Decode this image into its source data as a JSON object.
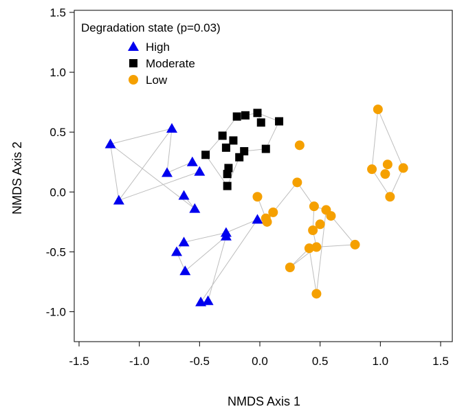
{
  "chart_data": {
    "type": "scatter",
    "xlabel": "NMDS Axis 1",
    "ylabel": "NMDS Axis 2",
    "xlim": [
      -1.5,
      1.5
    ],
    "ylim": [
      -1.25,
      1.5
    ],
    "xticks": [
      "-1.5",
      "-1.0",
      "-0.5",
      "0.0",
      "0.5",
      "1.0",
      "1.5"
    ],
    "yticks": [
      "-1.0",
      "-0.5",
      "0.0",
      "0.5",
      "1.0",
      "1.5"
    ],
    "legend": {
      "title": "Degradation state (p=0.03)",
      "position": "top-left"
    },
    "grid": false,
    "series": [
      {
        "name": "High",
        "marker": "triangle",
        "color": "#0000ee",
        "points": [
          [
            -1.24,
            0.4
          ],
          [
            -1.17,
            -0.07
          ],
          [
            -0.73,
            0.53
          ],
          [
            -0.77,
            0.16
          ],
          [
            -0.56,
            0.25
          ],
          [
            -0.5,
            0.17
          ],
          [
            -0.63,
            -0.03
          ],
          [
            -0.54,
            -0.14
          ],
          [
            -0.28,
            -0.34
          ],
          [
            -0.28,
            -0.37
          ],
          [
            -0.63,
            -0.42
          ],
          [
            -0.69,
            -0.5
          ],
          [
            -0.62,
            -0.66
          ],
          [
            -0.49,
            -0.92
          ],
          [
            -0.43,
            -0.91
          ],
          [
            -0.02,
            -0.23
          ]
        ],
        "edges": [
          [
            0,
            2
          ],
          [
            0,
            1
          ],
          [
            1,
            2
          ],
          [
            0,
            7
          ],
          [
            1,
            5
          ],
          [
            2,
            3
          ],
          [
            3,
            4
          ],
          [
            6,
            7
          ],
          [
            10,
            11
          ],
          [
            11,
            12
          ],
          [
            10,
            8
          ],
          [
            12,
            9
          ],
          [
            13,
            14
          ],
          [
            13,
            15
          ],
          [
            14,
            9
          ],
          [
            8,
            15
          ]
        ]
      },
      {
        "name": "Moderate",
        "marker": "square",
        "color": "#000000",
        "points": [
          [
            -0.45,
            0.31
          ],
          [
            -0.31,
            0.47
          ],
          [
            -0.28,
            0.37
          ],
          [
            -0.26,
            0.2
          ],
          [
            -0.27,
            0.15
          ],
          [
            -0.27,
            0.05
          ],
          [
            -0.22,
            0.43
          ],
          [
            -0.19,
            0.63
          ],
          [
            -0.17,
            0.29
          ],
          [
            -0.13,
            0.34
          ],
          [
            -0.12,
            0.64
          ],
          [
            -0.02,
            0.66
          ],
          [
            0.01,
            0.58
          ],
          [
            0.05,
            0.36
          ],
          [
            0.16,
            0.59
          ]
        ],
        "edges": [
          [
            0,
            1
          ],
          [
            1,
            7
          ],
          [
            7,
            10
          ],
          [
            10,
            11
          ],
          [
            11,
            14
          ],
          [
            14,
            13
          ],
          [
            13,
            9
          ],
          [
            9,
            8
          ],
          [
            8,
            5
          ],
          [
            5,
            0
          ],
          [
            12,
            11
          ],
          [
            6,
            2
          ],
          [
            3,
            4
          ]
        ]
      },
      {
        "name": "Low",
        "marker": "circle",
        "color": "#f5a000",
        "points": [
          [
            0.98,
            0.69
          ],
          [
            0.93,
            0.19
          ],
          [
            1.06,
            0.23
          ],
          [
            1.04,
            0.15
          ],
          [
            1.08,
            -0.04
          ],
          [
            1.19,
            0.2
          ],
          [
            0.33,
            0.39
          ],
          [
            0.31,
            0.08
          ],
          [
            -0.02,
            -0.04
          ],
          [
            0.05,
            -0.22
          ],
          [
            0.06,
            -0.25
          ],
          [
            0.11,
            -0.17
          ],
          [
            0.45,
            -0.12
          ],
          [
            0.55,
            -0.15
          ],
          [
            0.59,
            -0.2
          ],
          [
            0.5,
            -0.27
          ],
          [
            0.44,
            -0.32
          ],
          [
            0.47,
            -0.46
          ],
          [
            0.41,
            -0.47
          ],
          [
            0.79,
            -0.44
          ],
          [
            0.25,
            -0.63
          ],
          [
            0.47,
            -0.85
          ]
        ],
        "edges": [
          [
            0,
            1
          ],
          [
            1,
            4
          ],
          [
            4,
            5
          ],
          [
            5,
            0
          ],
          [
            7,
            12
          ],
          [
            12,
            13
          ],
          [
            13,
            14
          ],
          [
            14,
            19
          ],
          [
            19,
            17
          ],
          [
            17,
            16
          ],
          [
            16,
            12
          ],
          [
            8,
            9
          ],
          [
            9,
            10
          ],
          [
            10,
            11
          ],
          [
            11,
            7
          ],
          [
            18,
            20
          ],
          [
            20,
            17
          ],
          [
            18,
            21
          ],
          [
            21,
            13
          ],
          [
            15,
            16
          ]
        ]
      }
    ]
  }
}
